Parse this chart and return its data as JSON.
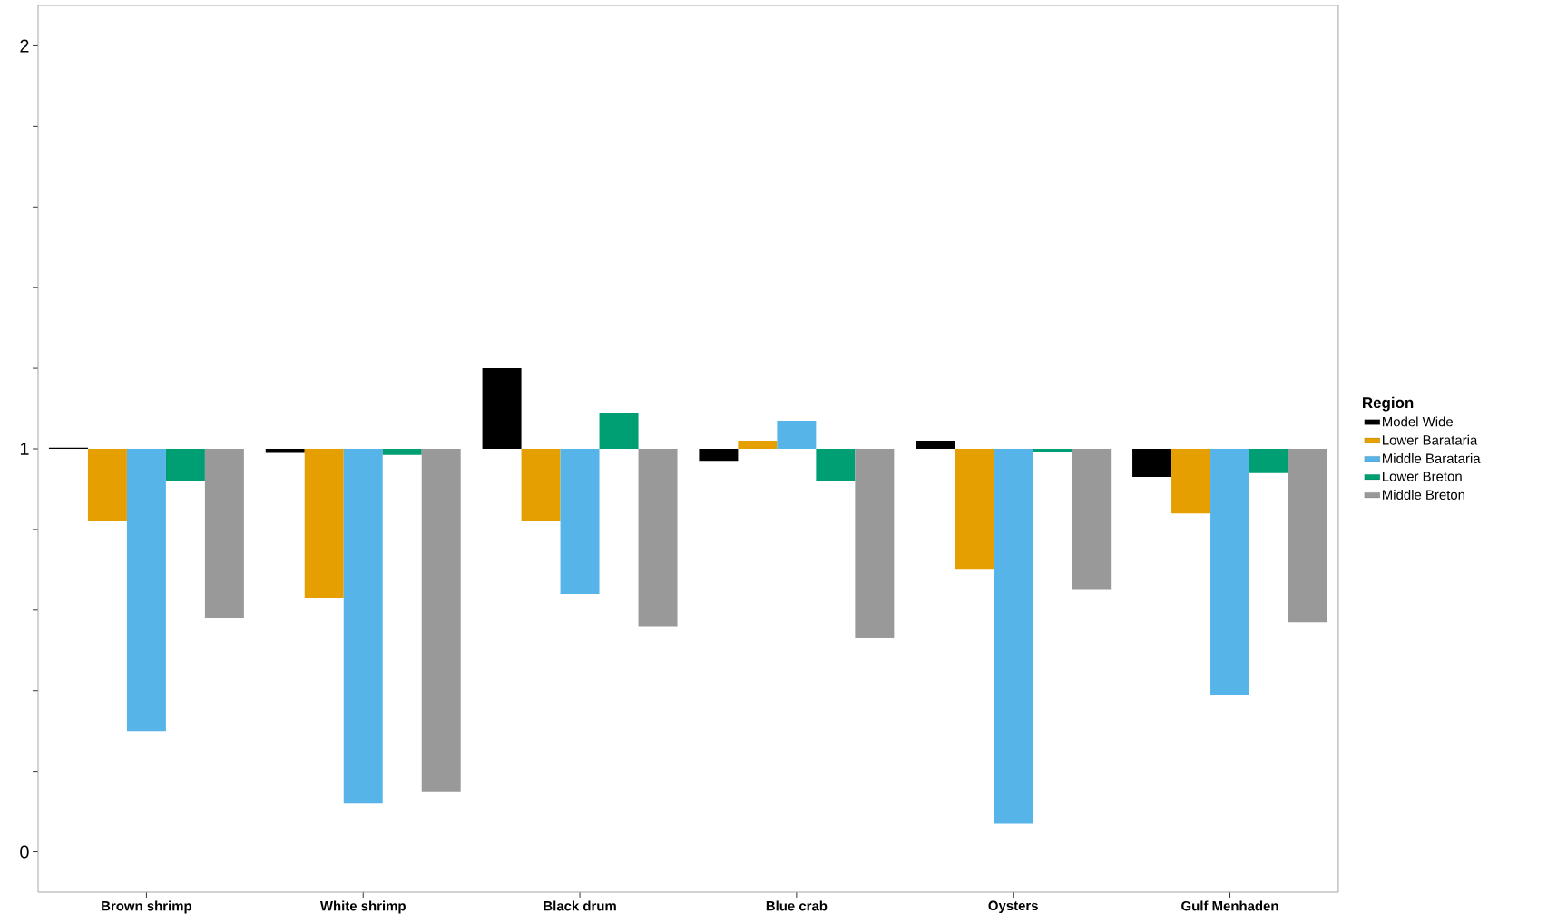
{
  "chart_data": {
    "type": "bar",
    "legend_title": "Region",
    "legend": "right",
    "categories": [
      "Brown shrimp",
      "White shrimp",
      "Black drum",
      "Blue crab",
      "Oysters",
      "Gulf Menhaden"
    ],
    "ylim": [
      -0.1,
      2.1
    ],
    "yticks": [
      0,
      {
        "value": 0.2,
        "label": null
      },
      {
        "value": 0.4,
        "label": null
      },
      {
        "value": 0.6,
        "label": null
      },
      {
        "value": 0.8,
        "label": null
      },
      1,
      {
        "value": 1.2,
        "label": null
      },
      {
        "value": 1.4,
        "label": null
      },
      {
        "value": 1.6,
        "label": null
      },
      {
        "value": 1.8,
        "label": null
      },
      2
    ],
    "series": [
      {
        "name": "Model Wide",
        "color": "#000000",
        "base": [
          1,
          1,
          1,
          1,
          1,
          1
        ],
        "values": [
          0.003,
          -0.01,
          0.2,
          -0.03,
          0.02,
          -0.07
        ]
      },
      {
        "name": "Lower Barataria",
        "color": "#e69f00",
        "base": [
          1,
          1,
          1,
          1,
          1,
          1
        ],
        "values": [
          -0.18,
          -0.37,
          -0.18,
          0.02,
          -0.3,
          -0.16
        ]
      },
      {
        "name": "Middle Barataria",
        "color": "#56b4e9",
        "base": [
          1,
          1,
          1,
          1,
          1,
          1
        ],
        "values": [
          -0.7,
          -0.88,
          -0.36,
          0.07,
          -0.93,
          -0.61
        ]
      },
      {
        "name": "Lower Breton",
        "color": "#009e73",
        "base": [
          1,
          1,
          1,
          1,
          1,
          1
        ],
        "values": [
          -0.08,
          -0.015,
          0.09,
          -0.08,
          -0.007,
          -0.06
        ]
      },
      {
        "name": "Middle Breton",
        "color": "#999999",
        "base": [
          1,
          1,
          1,
          1,
          1,
          1
        ],
        "values": [
          -0.42,
          -0.85,
          -0.44,
          -0.47,
          -0.35,
          -0.43
        ]
      }
    ]
  }
}
